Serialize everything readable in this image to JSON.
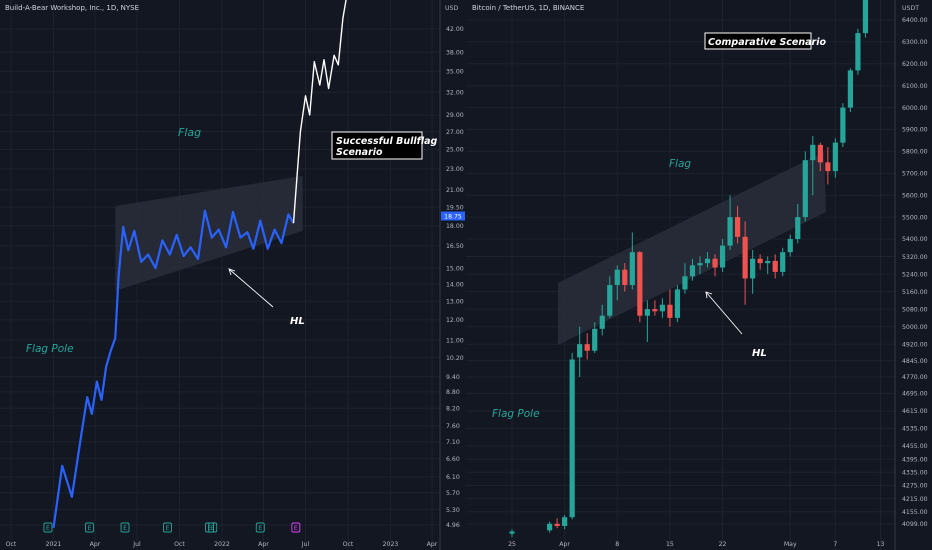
{
  "chart_data": [
    {
      "type": "line",
      "title": "Build-A-Bear Workshop, Inc., 1D, NYSE",
      "price_axis_label": "USD",
      "y_scale": "log",
      "x_ticks": [
        "Oct",
        "2021",
        "Apr",
        "Jul",
        "Oct",
        "2022",
        "Apr",
        "Jul",
        "Oct",
        "2023",
        "Apr"
      ],
      "y_ticks": [
        "42.00",
        "38.00",
        "35.00",
        "32.00",
        "29.00",
        "27.00",
        "25.00",
        "23.00",
        "21.00",
        "19.50",
        "18.00",
        "16.50",
        "15.00",
        "14.00",
        "13.00",
        "12.00",
        "11.00",
        "10.20",
        "9.40",
        "8.80",
        "8.20",
        "7.60",
        "7.10",
        "6.60",
        "6.10",
        "5.70",
        "5.30",
        "4.96"
      ],
      "last_price": "18.75",
      "event_markers": [
        "E",
        "E",
        "E",
        "E",
        "E",
        "E",
        "E",
        "E"
      ],
      "series": [
        {
          "label_role": "actual",
          "x": [
            "2021-01-01",
            "2021-01-20",
            "2021-02-10",
            "2021-03-01",
            "2021-03-15",
            "2021-03-25",
            "2021-04-05",
            "2021-04-15",
            "2021-04-25",
            "2021-05-05",
            "2021-05-15",
            "2021-05-22",
            "2021-06-01",
            "2021-06-12",
            "2021-06-25",
            "2021-07-10",
            "2021-07-25",
            "2021-08-10",
            "2021-08-25",
            "2021-09-10",
            "2021-09-25",
            "2021-10-10",
            "2021-10-25",
            "2021-11-10",
            "2021-11-25",
            "2021-12-10",
            "2021-12-25",
            "2022-01-10",
            "2022-01-25",
            "2022-02-10",
            "2022-02-25",
            "2022-03-10",
            "2022-03-25",
            "2022-04-10",
            "2022-04-25",
            "2022-05-10",
            "2022-05-25",
            "2022-06-05"
          ],
          "values": [
            4.9,
            6.4,
            5.6,
            7.2,
            8.6,
            8.0,
            9.2,
            8.5,
            9.8,
            10.5,
            11.1,
            14.5,
            17.9,
            16.2,
            17.6,
            15.4,
            15.9,
            15.0,
            16.9,
            15.9,
            17.3,
            15.8,
            16.4,
            15.6,
            19.2,
            17.1,
            17.7,
            16.4,
            19.1,
            17.1,
            17.5,
            16.3,
            18.4,
            16.3,
            17.7,
            16.7,
            18.9,
            18.2
          ]
        },
        {
          "label_role": "projection",
          "x": [
            "2022-06-05",
            "2022-06-20",
            "2022-07-01",
            "2022-07-10",
            "2022-07-20",
            "2022-08-01",
            "2022-08-10",
            "2022-08-20",
            "2022-09-01",
            "2022-09-10",
            "2022-09-20",
            "2022-10-01"
          ],
          "values": [
            18.2,
            27.0,
            31.5,
            29.0,
            36.5,
            33.0,
            36.8,
            32.5,
            37.5,
            36.0,
            44.0,
            50.0
          ]
        }
      ],
      "annotations": [
        "Flag",
        "Successful Bullflag",
        "Scenario",
        "HL",
        "Flag Pole"
      ]
    },
    {
      "type": "candlestick",
      "title": "Bitcoin / TetherUS, 1D, BINANCE",
      "price_axis_label": "USDT",
      "x_ticks": [
        "25",
        "Apr",
        "8",
        "15",
        "22",
        "May",
        "7",
        "13"
      ],
      "y_ticks": [
        "6400.00",
        "6300.00",
        "6200.00",
        "6100.00",
        "6000.00",
        "5900.00",
        "5800.00",
        "5700.00",
        "5600.00",
        "5500.00",
        "5400.00",
        "5320.00",
        "5240.00",
        "5160.00",
        "5080.00",
        "5000.00",
        "4920.00",
        "4845.00",
        "4770.00",
        "4695.00",
        "4615.00",
        "4535.00",
        "4455.00",
        "4395.00",
        "4335.00",
        "4275.00",
        "4215.00",
        "4155.00",
        "4099.00"
      ],
      "candles": [
        {
          "x": "2019-03-25",
          "o": 4055,
          "h": 4075,
          "l": 4040,
          "c": 4065
        },
        {
          "x": "2019-03-30",
          "o": 4070,
          "h": 4110,
          "l": 4060,
          "c": 4100
        },
        {
          "x": "2019-03-31",
          "o": 4100,
          "h": 4125,
          "l": 4080,
          "c": 4090
        },
        {
          "x": "2019-04-01",
          "o": 4090,
          "h": 4140,
          "l": 4075,
          "c": 4130
        },
        {
          "x": "2019-04-02",
          "o": 4130,
          "h": 4880,
          "l": 4120,
          "c": 4850
        },
        {
          "x": "2019-04-03",
          "o": 4860,
          "h": 5000,
          "l": 4770,
          "c": 4920
        },
        {
          "x": "2019-04-04",
          "o": 4920,
          "h": 4970,
          "l": 4850,
          "c": 4890
        },
        {
          "x": "2019-04-05",
          "o": 4890,
          "h": 5020,
          "l": 4880,
          "c": 4990
        },
        {
          "x": "2019-04-06",
          "o": 4990,
          "h": 5100,
          "l": 4960,
          "c": 5050
        },
        {
          "x": "2019-04-07",
          "o": 5050,
          "h": 5230,
          "l": 5040,
          "c": 5190
        },
        {
          "x": "2019-04-08",
          "o": 5190,
          "h": 5280,
          "l": 5120,
          "c": 5260
        },
        {
          "x": "2019-04-09",
          "o": 5260,
          "h": 5290,
          "l": 5160,
          "c": 5190
        },
        {
          "x": "2019-04-10",
          "o": 5190,
          "h": 5430,
          "l": 5170,
          "c": 5340
        },
        {
          "x": "2019-04-11",
          "o": 5340,
          "h": 5345,
          "l": 5020,
          "c": 5050
        },
        {
          "x": "2019-04-12",
          "o": 5050,
          "h": 5120,
          "l": 4930,
          "c": 5080
        },
        {
          "x": "2019-04-13",
          "o": 5080,
          "h": 5120,
          "l": 5050,
          "c": 5070
        },
        {
          "x": "2019-04-14",
          "o": 5070,
          "h": 5130,
          "l": 5040,
          "c": 5100
        },
        {
          "x": "2019-04-15",
          "o": 5100,
          "h": 5170,
          "l": 5000,
          "c": 5040
        },
        {
          "x": "2019-04-16",
          "o": 5040,
          "h": 5190,
          "l": 5020,
          "c": 5170
        },
        {
          "x": "2019-04-17",
          "o": 5170,
          "h": 5290,
          "l": 5150,
          "c": 5230
        },
        {
          "x": "2019-04-18",
          "o": 5230,
          "h": 5310,
          "l": 5210,
          "c": 5280
        },
        {
          "x": "2019-04-19",
          "o": 5280,
          "h": 5320,
          "l": 5240,
          "c": 5290
        },
        {
          "x": "2019-04-20",
          "o": 5290,
          "h": 5340,
          "l": 5270,
          "c": 5310
        },
        {
          "x": "2019-04-21",
          "o": 5310,
          "h": 5330,
          "l": 5230,
          "c": 5270
        },
        {
          "x": "2019-04-22",
          "o": 5270,
          "h": 5400,
          "l": 5250,
          "c": 5370
        },
        {
          "x": "2019-04-23",
          "o": 5370,
          "h": 5600,
          "l": 5350,
          "c": 5500
        },
        {
          "x": "2019-04-24",
          "o": 5500,
          "h": 5550,
          "l": 5380,
          "c": 5410
        },
        {
          "x": "2019-04-25",
          "o": 5410,
          "h": 5480,
          "l": 5100,
          "c": 5220
        },
        {
          "x": "2019-04-26",
          "o": 5220,
          "h": 5350,
          "l": 5150,
          "c": 5310
        },
        {
          "x": "2019-04-27",
          "o": 5310,
          "h": 5330,
          "l": 5260,
          "c": 5290
        },
        {
          "x": "2019-04-28",
          "o": 5290,
          "h": 5320,
          "l": 5240,
          "c": 5300
        },
        {
          "x": "2019-04-29",
          "o": 5300,
          "h": 5330,
          "l": 5220,
          "c": 5250
        },
        {
          "x": "2019-04-30",
          "o": 5250,
          "h": 5360,
          "l": 5230,
          "c": 5340
        },
        {
          "x": "2019-05-01",
          "o": 5340,
          "h": 5420,
          "l": 5320,
          "c": 5400
        },
        {
          "x": "2019-05-02",
          "o": 5400,
          "h": 5560,
          "l": 5380,
          "c": 5500
        },
        {
          "x": "2019-05-03",
          "o": 5500,
          "h": 5800,
          "l": 5480,
          "c": 5760
        },
        {
          "x": "2019-05-04",
          "o": 5760,
          "h": 5870,
          "l": 5600,
          "c": 5830
        },
        {
          "x": "2019-05-05",
          "o": 5830,
          "h": 5840,
          "l": 5710,
          "c": 5750
        },
        {
          "x": "2019-05-06",
          "o": 5750,
          "h": 5820,
          "l": 5650,
          "c": 5710
        },
        {
          "x": "2019-05-07",
          "o": 5710,
          "h": 5860,
          "l": 5680,
          "c": 5840
        },
        {
          "x": "2019-05-08",
          "o": 5840,
          "h": 6020,
          "l": 5820,
          "c": 6000
        },
        {
          "x": "2019-05-09",
          "o": 6000,
          "h": 6180,
          "l": 5980,
          "c": 6170
        },
        {
          "x": "2019-05-10",
          "o": 6170,
          "h": 6360,
          "l": 6150,
          "c": 6340
        },
        {
          "x": "2019-05-11",
          "o": 6340,
          "h": 6900,
          "l": 6320,
          "c": 6850
        }
      ],
      "annotations": [
        "Comparative Scenario",
        "Flag",
        "HL",
        "Flag Pole"
      ]
    }
  ]
}
